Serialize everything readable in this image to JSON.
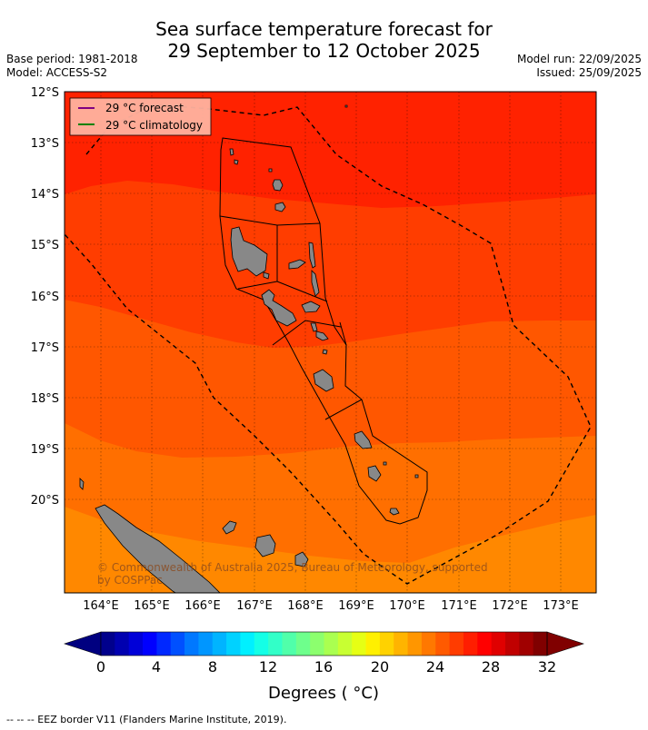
{
  "title_line1": "Sea surface temperature forecast for",
  "title_line2": "29 September to 12 October 2025",
  "base_period": "Base period: 1981-2018",
  "model": "Model: ACCESS-S2",
  "model_run": "Model run: 22/09/2025",
  "issued": "Issued: 25/09/2025",
  "legend": {
    "forecast": "29 °C  forecast",
    "climatology": "29 °C  climatology",
    "forecast_color": "#800080",
    "climatology_color": "#008000"
  },
  "copyright_line1": "© Commonwealth of Australia 2025, Bureau of Meteorology, supported",
  "copyright_line2": "by COSPPac",
  "lat_labels": [
    "12°S",
    "13°S",
    "14°S",
    "15°S",
    "16°S",
    "17°S",
    "18°S",
    "19°S",
    "20°S"
  ],
  "lon_labels": [
    "164°E",
    "165°E",
    "166°E",
    "167°E",
    "168°E",
    "169°E",
    "170°E",
    "171°E",
    "172°E",
    "173°E"
  ],
  "colorbar": {
    "label": "Degrees ( °C)",
    "ticks": [
      "0",
      "4",
      "8",
      "12",
      "16",
      "20",
      "24",
      "28",
      "32"
    ],
    "colors": [
      "#00008c",
      "#0000b0",
      "#0000d8",
      "#0000ff",
      "#0028ff",
      "#0050ff",
      "#0078ff",
      "#0096ff",
      "#00b4ff",
      "#00d2ff",
      "#00f0ff",
      "#14ffe6",
      "#32ffc8",
      "#50ffaa",
      "#6eff8c",
      "#8cff6e",
      "#aaff50",
      "#c8ff32",
      "#e6ff14",
      "#fff000",
      "#ffd200",
      "#ffb400",
      "#ff9600",
      "#ff7800",
      "#ff5a00",
      "#ff3c00",
      "#ff1e00",
      "#ff0000",
      "#e00000",
      "#c00000",
      "#a00000",
      "#800000"
    ],
    "under_color": "#000080",
    "over_color": "#800000"
  },
  "bands": [
    {
      "range": "29-30",
      "color": "#ff2200"
    },
    {
      "range": "28-29",
      "color": "#ff3d00"
    },
    {
      "range": "27-28",
      "color": "#ff5700"
    },
    {
      "range": "26-27",
      "color": "#ff6f00"
    },
    {
      "range": "25-26",
      "color": "#ff8800"
    }
  ],
  "footer": "--  --  -- EEZ border V11 (Flanders Marine Institute, 2019)."
}
